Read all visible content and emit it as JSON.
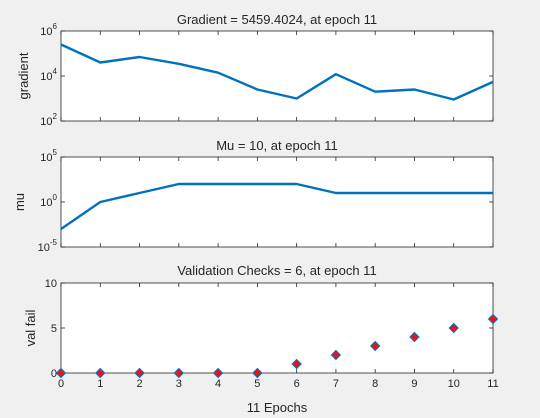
{
  "chart_data": [
    {
      "type": "line",
      "title": "Gradient = 5459.4024, at epoch 11",
      "xlabel": "",
      "ylabel": "gradient",
      "yscale": "log",
      "ylim": [
        100,
        1000000
      ],
      "xlim": [
        0,
        11
      ],
      "grid": false,
      "yticks": [
        {
          "base": "10",
          "exp": "2"
        },
        {
          "base": "10",
          "exp": "4"
        },
        {
          "base": "10",
          "exp": "6"
        }
      ],
      "x": [
        0,
        1,
        2,
        3,
        4,
        5,
        6,
        7,
        8,
        9,
        10,
        11
      ],
      "series": [
        {
          "values": [
            250000,
            40000,
            70000,
            35000,
            14000,
            2500,
            1000,
            12000,
            2000,
            2500,
            900,
            5459.4024
          ],
          "color": "#0072bd"
        }
      ]
    },
    {
      "type": "line",
      "title": "Mu = 10, at epoch 11",
      "xlabel": "",
      "ylabel": "mu",
      "yscale": "log",
      "ylim": [
        1e-05,
        100000
      ],
      "xlim": [
        0,
        11
      ],
      "grid": false,
      "yticks": [
        {
          "base": "10",
          "exp": "-5"
        },
        {
          "base": "10",
          "exp": "0"
        },
        {
          "base": "10",
          "exp": "5"
        }
      ],
      "x": [
        0,
        1,
        2,
        3,
        4,
        5,
        6,
        7,
        8,
        9,
        10,
        11
      ],
      "series": [
        {
          "values": [
            0.001,
            1,
            10,
            100,
            100,
            100,
            100,
            10,
            10,
            10,
            10,
            10
          ],
          "color": "#0072bd"
        }
      ]
    },
    {
      "type": "scatter",
      "title": "Validation Checks = 6, at epoch 11",
      "xlabel": "11 Epochs",
      "ylabel": "val fail",
      "yscale": "linear",
      "ylim": [
        0,
        10
      ],
      "xlim": [
        0,
        11
      ],
      "grid": false,
      "yticks": [
        {
          "base": "0",
          "exp": ""
        },
        {
          "base": "5",
          "exp": ""
        },
        {
          "base": "10",
          "exp": ""
        }
      ],
      "xticks": [
        "0",
        "1",
        "2",
        "3",
        "4",
        "5",
        "6",
        "7",
        "8",
        "9",
        "10",
        "11"
      ],
      "x": [
        0,
        1,
        2,
        3,
        4,
        5,
        6,
        7,
        8,
        9,
        10,
        11
      ],
      "series": [
        {
          "values": [
            0,
            0,
            0,
            0,
            0,
            0,
            1,
            2,
            3,
            4,
            5,
            6
          ],
          "marker": "diamond",
          "color": "#e8141a",
          "edge_color": "#0072bd"
        }
      ]
    }
  ]
}
